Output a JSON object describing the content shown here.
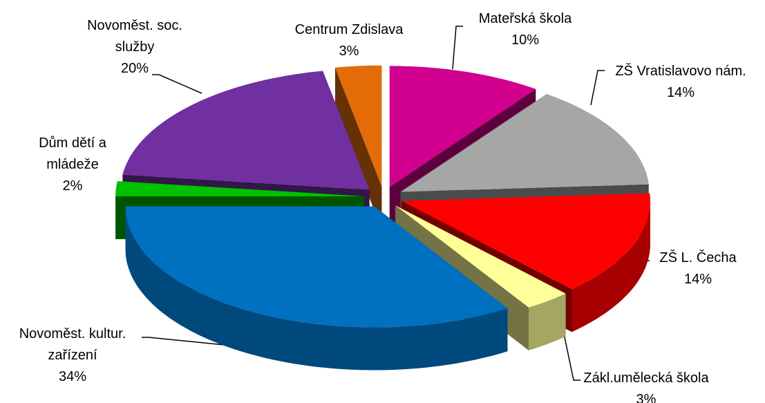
{
  "chart_data": {
    "type": "pie",
    "categories": [
      "Mateřská škola",
      "ZŠ Vratislavovo nám.",
      "ZŠ L. Čecha",
      "Zákl.umělecká škola",
      "Novoměst. kultur.\nzařízení",
      "Dům dětí a\nmládeže",
      "Novoměst. soc.\nslužby",
      "Centrum Zdislava"
    ],
    "values": [
      10,
      14,
      14,
      3,
      34,
      2,
      20,
      3
    ],
    "value_labels": [
      "10%",
      "14%",
      "14%",
      "3%",
      "34%",
      "2%",
      "20%",
      "3%"
    ],
    "colors": [
      "#d1008f",
      "#a6a6a6",
      "#ff0000",
      "#ffff99",
      "#0070c0",
      "#00c000",
      "#7030a0",
      "#e36c09"
    ]
  }
}
